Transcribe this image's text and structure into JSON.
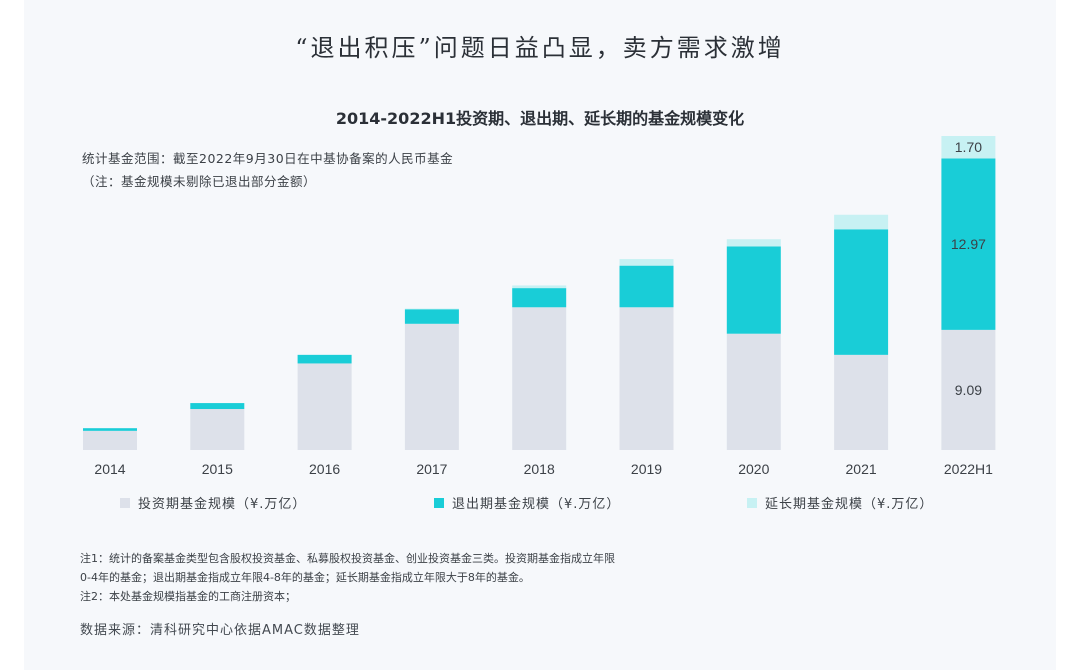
{
  "headline": "“退出积压”问题日益凸显，卖方需求激增",
  "subtitle": "2014-2022H1投资期、退出期、延长期的基金规模变化",
  "scope_lines": [
    "统计基金范围：截至2022年9月30日在中基协备案的人民币基金",
    "（注：基金规模未剔除已退出部分金额）"
  ],
  "notes": [
    "注1：统计的备案基金类型包含股权投资基金、私募股权投资基金、创业投资基金三类。投资期基金指成立年限",
    "0-4年的基金；退出期基金指成立年限4-8年的基金；延长期基金指成立年限大于8年的基金。",
    "注2：本处基金规模指基金的工商注册资本；"
  ],
  "source": "数据来源：清科研究中心依据AMAC数据整理",
  "colors": {
    "investment": "#dde1ea",
    "exit": "#19cdd7",
    "extension": "#c7f1f3"
  },
  "chart_data": {
    "type": "bar",
    "stacked": true,
    "categories": [
      "2014",
      "2015",
      "2016",
      "2017",
      "2018",
      "2019",
      "2020",
      "2021",
      "2022H1"
    ],
    "series": [
      {
        "name": "投资期基金规模（¥.万亿）",
        "values": [
          1.45,
          3.1,
          6.55,
          9.55,
          10.8,
          10.8,
          8.8,
          7.2,
          9.09
        ]
      },
      {
        "name": "退出期基金规模（¥.万亿）",
        "values": [
          0.2,
          0.45,
          0.65,
          1.1,
          1.45,
          3.15,
          6.6,
          9.5,
          12.97
        ]
      },
      {
        "name": "延长期基金规模（¥.万亿）",
        "values": [
          0.0,
          0.0,
          0.0,
          0.05,
          0.2,
          0.5,
          0.55,
          1.1,
          1.7
        ]
      }
    ],
    "data_labels": {
      "2022H1": [
        "9.09",
        "12.97",
        "1.70"
      ]
    },
    "ylim": [
      0,
      23.76
    ],
    "y_axis_visible": false,
    "grid": false,
    "legend_position": "bottom"
  }
}
